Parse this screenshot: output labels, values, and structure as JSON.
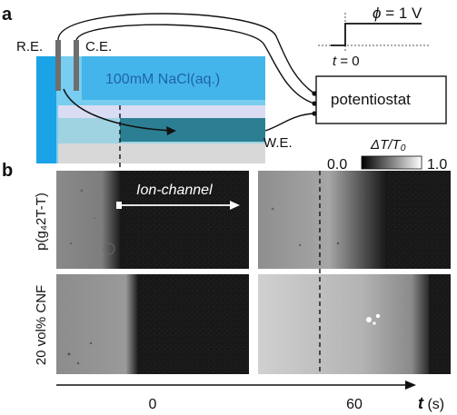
{
  "panel_a": {
    "letter": "a",
    "re_label": "R.E.",
    "ce_label": "C.E.",
    "electrolyte_label": "100mM NaCl(aq.)",
    "we_label": "W.E.",
    "potentiostat_label": "potentiostat",
    "step": {
      "phi_symbol": "ϕ",
      "phi_value": " = 1 V",
      "t_symbol": "t",
      "t_value": " = 0"
    }
  },
  "panel_b": {
    "letter": "b",
    "colorbar": {
      "title": "ΔT/T₀",
      "min_label": "0.0",
      "max_label": "1.0"
    },
    "rows": [
      {
        "label": "p(g₄2T-T)"
      },
      {
        "label": "20 vol% CNF"
      }
    ],
    "arrow_label": "Ion-channel",
    "time_axis": {
      "symbol": "t",
      "unit": " (s)",
      "ticks": [
        "0",
        "60"
      ]
    }
  },
  "colors": {
    "electrolyte_light": "#79cdf0",
    "electrolyte_bright": "#1aa3e6",
    "channel": "#2c7f93",
    "substrate": "#d8d8d8",
    "electrode": "#6e6e6e",
    "electrolyte_text": "#1f63ad"
  }
}
